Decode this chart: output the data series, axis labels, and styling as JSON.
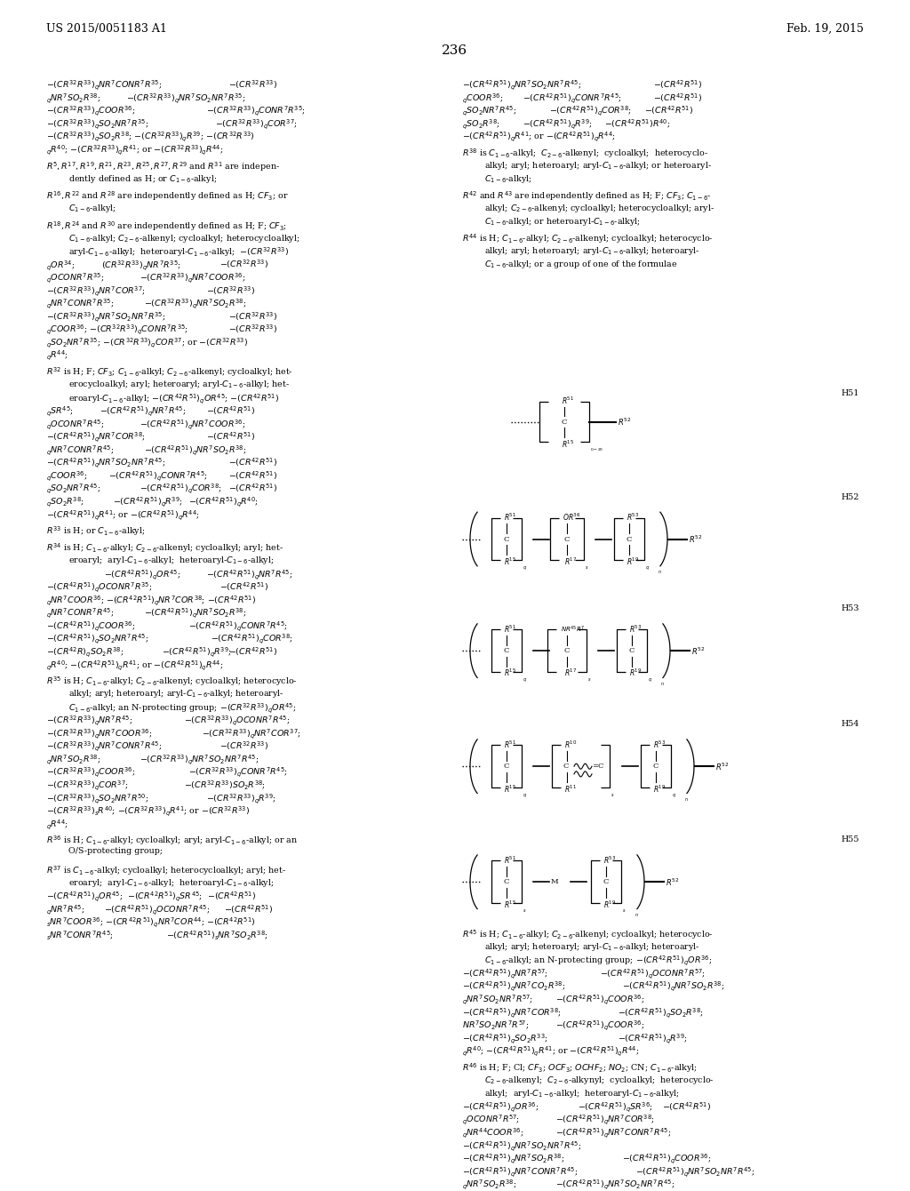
{
  "page_width": 10.24,
  "page_height": 13.2,
  "bg_color": "#ffffff",
  "header_left": "US 2015/0051183 A1",
  "header_right": "Feb. 19, 2015",
  "page_number": "236",
  "text_color": "#000000",
  "body_fs": 6.8,
  "header_fs": 9.0,
  "pagenum_fs": 11.0
}
